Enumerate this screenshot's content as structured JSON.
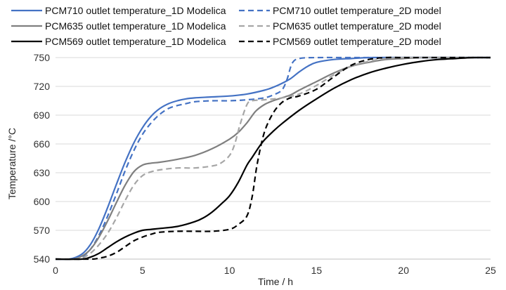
{
  "chart_data": {
    "type": "line",
    "xlabel": "Time / h",
    "ylabel": "Temperature /°C",
    "xlim": [
      0,
      25
    ],
    "ylim": [
      540,
      750
    ],
    "xticks": [
      0,
      5,
      10,
      15,
      20,
      25
    ],
    "yticks": [
      540,
      570,
      600,
      630,
      660,
      690,
      720,
      750
    ],
    "grid": "horizontal",
    "legend_position": "top",
    "series": [
      {
        "name": "PCM710 outlet temperature_1D Modelica",
        "color": "#4472C4",
        "style": "solid",
        "x": [
          0,
          0.8,
          1.5,
          2,
          2.5,
          3,
          3.5,
          4,
          4.5,
          5,
          5.5,
          6,
          6.5,
          7,
          7.5,
          8,
          9,
          10,
          11,
          12,
          12.5,
          13,
          13.5,
          14,
          14.5,
          15,
          16,
          17,
          18,
          19,
          20,
          21,
          22,
          23,
          24,
          25
        ],
        "y": [
          540,
          540,
          545,
          555,
          572,
          594,
          618,
          641,
          661,
          677,
          689,
          697,
          702,
          705,
          707,
          708,
          709,
          710,
          712,
          716,
          719,
          723,
          728,
          735,
          741,
          745,
          748,
          749,
          750,
          750,
          750,
          750,
          750,
          750,
          750,
          750
        ]
      },
      {
        "name": "PCM710 outlet temperature_2D model",
        "color": "#4472C4",
        "style": "dashed",
        "x": [
          0,
          1,
          1.5,
          2,
          2.5,
          3,
          3.5,
          4,
          4.5,
          5,
          5.5,
          6,
          6.5,
          7,
          7.5,
          8,
          9,
          10,
          11,
          12,
          12.5,
          13,
          13.3,
          13.6,
          14,
          15,
          17,
          20,
          25
        ],
        "y": [
          540,
          540,
          542,
          550,
          565,
          585,
          608,
          632,
          653,
          670,
          682,
          691,
          697,
          700,
          702,
          704,
          705,
          705,
          706,
          708,
          711,
          716,
          727,
          744,
          749,
          750,
          750,
          750,
          750
        ]
      },
      {
        "name": "PCM635 outlet temperature_1D Modelica",
        "color": "#7F7F7F",
        "style": "solid",
        "x": [
          0,
          1,
          1.5,
          2,
          2.5,
          3,
          3.5,
          4,
          4.5,
          5,
          5.5,
          6,
          7,
          8,
          9,
          10,
          10.5,
          11,
          11.5,
          12,
          12.5,
          13,
          13.5,
          14,
          15,
          16,
          17,
          18,
          19,
          20,
          21,
          22,
          23,
          24,
          25
        ],
        "y": [
          540,
          540,
          543,
          550,
          563,
          580,
          599,
          617,
          631,
          638,
          640,
          641,
          644,
          648,
          655,
          665,
          672,
          682,
          694,
          701,
          705,
          708,
          711,
          716,
          725,
          734,
          741,
          745,
          748,
          749,
          750,
          750,
          750,
          750,
          750
        ]
      },
      {
        "name": "PCM635 outlet temperature_2D model",
        "color": "#A6A6A6",
        "style": "dashed",
        "x": [
          0,
          1,
          1.5,
          2,
          2.5,
          3,
          3.5,
          4,
          4.5,
          5,
          5.5,
          6,
          7,
          8,
          9,
          9.5,
          10,
          10.3,
          10.6,
          11,
          11.3,
          12,
          13,
          14,
          15,
          16,
          17,
          18,
          19,
          20,
          22,
          25
        ],
        "y": [
          540,
          540,
          541,
          546,
          555,
          567,
          583,
          601,
          617,
          627,
          631,
          633,
          635,
          635,
          637,
          640,
          648,
          660,
          680,
          701,
          705,
          706,
          708,
          712,
          721,
          732,
          741,
          746,
          749,
          750,
          750,
          750
        ]
      },
      {
        "name": "PCM569 outlet temperature_1D Modelica",
        "color": "#000000",
        "style": "solid",
        "x": [
          0,
          1.5,
          2,
          2.5,
          3,
          3.5,
          4,
          4.5,
          5,
          5.5,
          6,
          7,
          8,
          8.5,
          9,
          9.5,
          10,
          10.5,
          11,
          11.3,
          11.7,
          12,
          12.5,
          13,
          14,
          15,
          16,
          17,
          18,
          19,
          20,
          21,
          22,
          23,
          24,
          25
        ],
        "y": [
          540,
          540,
          542,
          546,
          552,
          558,
          563,
          567,
          570,
          571,
          572,
          574,
          579,
          583,
          589,
          597,
          606,
          620,
          638,
          646,
          657,
          664,
          673,
          681,
          695,
          707,
          718,
          727,
          734,
          739,
          743,
          746,
          748,
          749,
          750,
          750
        ]
      },
      {
        "name": "PCM569 outlet temperature_2D model",
        "color": "#000000",
        "style": "dashed",
        "x": [
          0,
          2,
          2.5,
          3,
          3.5,
          4,
          4.5,
          5,
          5.5,
          6,
          7,
          8,
          9,
          10,
          10.5,
          11,
          11.3,
          11.6,
          12,
          12.5,
          13,
          13.5,
          14,
          15,
          16,
          17,
          18,
          19,
          20,
          22,
          25
        ],
        "y": [
          540,
          540,
          541,
          543,
          547,
          553,
          559,
          563,
          566,
          568,
          569,
          569,
          569,
          571,
          576,
          585,
          605,
          640,
          672,
          692,
          703,
          708,
          710,
          717,
          730,
          742,
          748,
          750,
          750,
          750,
          750
        ]
      }
    ]
  }
}
